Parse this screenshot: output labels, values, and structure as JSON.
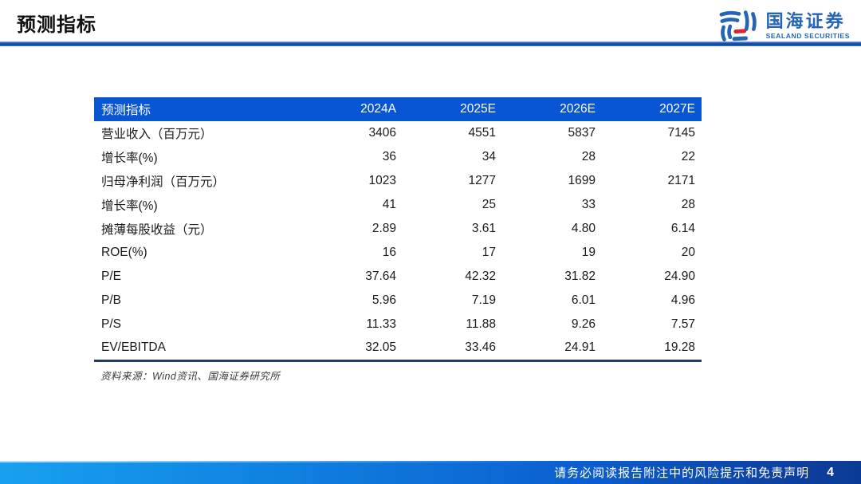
{
  "header": {
    "title": "预测指标",
    "brand_cn": "国海证券",
    "brand_en": "SEALAND SECURITIES"
  },
  "colors": {
    "table_header_bg": "#0856d4",
    "title_rule_blue": "#1d5ab8",
    "table_bottom_border": "#1f3864",
    "brand_blue": "#2565b5",
    "brand_red": "#d7282f",
    "footer_gradient_left": "#18a0f0",
    "footer_gradient_right": "#0b3a96",
    "text_color": "#1a1a1a"
  },
  "table": {
    "header_label": "预测指标",
    "columns": [
      "2024A",
      "2025E",
      "2026E",
      "2027E"
    ],
    "rows": [
      {
        "label": "营业收入（百万元）",
        "values": [
          "3406",
          "4551",
          "5837",
          "7145"
        ]
      },
      {
        "label": "增长率(%)",
        "values": [
          "36",
          "34",
          "28",
          "22"
        ]
      },
      {
        "label": "归母净利润（百万元）",
        "values": [
          "1023",
          "1277",
          "1699",
          "2171"
        ]
      },
      {
        "label": "增长率(%)",
        "values": [
          "41",
          "25",
          "33",
          "28"
        ]
      },
      {
        "label": "摊薄每股收益（元）",
        "values": [
          "2.89",
          "3.61",
          "4.80",
          "6.14"
        ]
      },
      {
        "label": "ROE(%)",
        "values": [
          "16",
          "17",
          "19",
          "20"
        ]
      },
      {
        "label": "P/E",
        "values": [
          "37.64",
          "42.32",
          "31.82",
          "24.90"
        ]
      },
      {
        "label": "P/B",
        "values": [
          "5.96",
          "7.19",
          "6.01",
          "4.96"
        ]
      },
      {
        "label": "P/S",
        "values": [
          "11.33",
          "11.88",
          "9.26",
          "7.57"
        ]
      },
      {
        "label": "EV/EBITDA",
        "values": [
          "32.05",
          "33.46",
          "24.91",
          "19.28"
        ]
      }
    ],
    "source": "资料来源：Wind资讯、国海证券研究所"
  },
  "footer": {
    "disclaimer": "请务必阅读报告附注中的风险提示和免责声明",
    "page_number": "4"
  }
}
